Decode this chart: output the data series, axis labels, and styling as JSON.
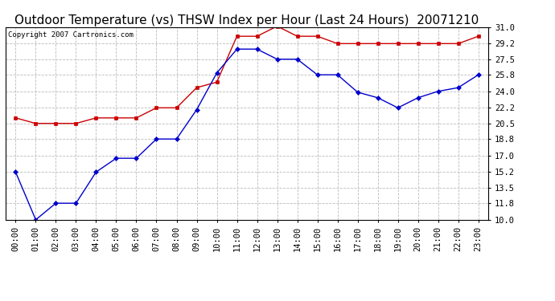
{
  "title": "Outdoor Temperature (vs) THSW Index per Hour (Last 24 Hours)  20071210",
  "copyright_text": "Copyright 2007 Cartronics.com",
  "hours": [
    "00:00",
    "01:00",
    "02:00",
    "03:00",
    "04:00",
    "05:00",
    "06:00",
    "07:00",
    "08:00",
    "09:00",
    "10:00",
    "11:00",
    "12:00",
    "13:00",
    "14:00",
    "15:00",
    "16:00",
    "17:00",
    "18:00",
    "19:00",
    "20:00",
    "21:00",
    "22:00",
    "23:00"
  ],
  "temp_red": [
    21.1,
    20.5,
    20.5,
    20.5,
    21.1,
    21.1,
    21.1,
    22.2,
    22.2,
    24.4,
    25.0,
    30.0,
    30.0,
    31.1,
    30.0,
    30.0,
    29.2,
    29.2,
    29.2,
    29.2,
    29.2,
    29.2,
    29.2,
    30.0
  ],
  "temp_blue": [
    15.2,
    10.0,
    11.8,
    11.8,
    15.2,
    16.7,
    16.7,
    18.8,
    18.8,
    22.0,
    26.0,
    28.6,
    28.6,
    27.5,
    27.5,
    25.8,
    25.8,
    23.9,
    23.3,
    22.2,
    23.3,
    24.0,
    24.4,
    25.8
  ],
  "ylim": [
    10.0,
    31.0
  ],
  "yticks": [
    10.0,
    11.8,
    13.5,
    15.2,
    17.0,
    18.8,
    20.5,
    22.2,
    24.0,
    25.8,
    27.5,
    29.2,
    31.0
  ],
  "red_color": "#cc0000",
  "blue_color": "#0000cc",
  "bg_color": "#ffffff",
  "grid_color": "#bbbbbb",
  "title_fontsize": 11,
  "copyright_fontsize": 6.5,
  "tick_fontsize": 7.5,
  "marker_size": 3
}
